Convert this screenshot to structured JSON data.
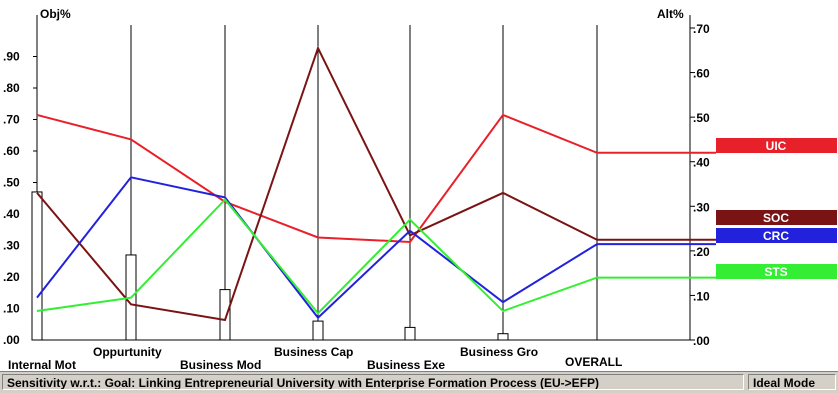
{
  "chart_data": {
    "type": "line",
    "title": "",
    "left_axis": {
      "label": "Obj%",
      "ticks": [
        ".00",
        ".10",
        ".20",
        ".30",
        ".40",
        ".50",
        ".60",
        ".70",
        ".80",
        ".90"
      ],
      "range": [
        0,
        1.0
      ]
    },
    "right_axis": {
      "label": "Alt%",
      "ticks": [
        ".00",
        ".10",
        ".20",
        ".30",
        ".40",
        ".50",
        ".60",
        ".70"
      ],
      "range": [
        0,
        0.7
      ]
    },
    "categories": [
      "Internal Mot",
      "Oppurtunity",
      "Business Mod",
      "Business Cap",
      "Business Exe",
      "Business Gro",
      "OVERALL"
    ],
    "objective_weights": [
      0.47,
      0.27,
      0.16,
      0.06,
      0.04,
      0.02
    ],
    "series": [
      {
        "name": "UIC",
        "color": "#e8202a",
        "values": [
          0.505,
          0.45,
          0.31,
          0.23,
          0.22,
          0.505,
          0.42
        ]
      },
      {
        "name": "SOC",
        "color": "#7a1414",
        "values": [
          0.33,
          0.08,
          0.045,
          0.655,
          0.235,
          0.33,
          0.225
        ]
      },
      {
        "name": "CRC",
        "color": "#2222dd",
        "values": [
          0.095,
          0.365,
          0.32,
          0.05,
          0.245,
          0.085,
          0.215
        ]
      },
      {
        "name": "STS",
        "color": "#33ee33",
        "values": [
          0.065,
          0.095,
          0.315,
          0.06,
          0.27,
          0.065,
          0.14
        ]
      }
    ]
  },
  "status": {
    "sensitivity": "Sensitivity w.r.t.: Goal: Linking Entrepreneurial University with Enterprise Formation Process (EU->EFP)",
    "mode": "Ideal Mode"
  }
}
